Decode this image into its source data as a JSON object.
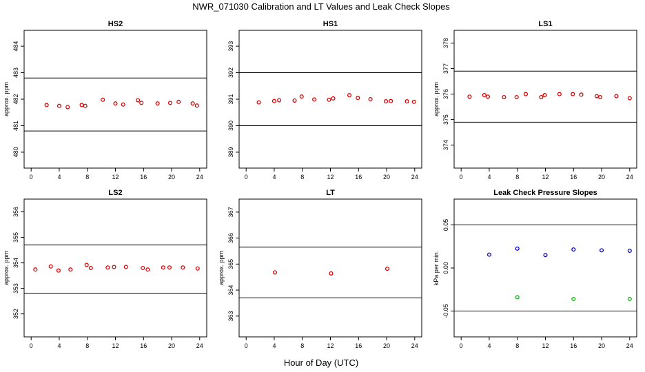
{
  "figure": {
    "title": "NWR_071030  Calibration and LT Values and Leak Check Slopes",
    "xlabel": "Hour of Day (UTC)"
  },
  "chart_data": [
    {
      "type": "scatter",
      "title": "HS2",
      "ylabel": "approx. ppm",
      "xlim": [
        -1,
        25
      ],
      "ylim": [
        479.4,
        484.6
      ],
      "xticks": [
        0,
        4,
        8,
        12,
        16,
        20,
        24
      ],
      "yticks": [
        480,
        481,
        482,
        483,
        484
      ],
      "hlines": [
        482.8,
        480.8
      ],
      "series": [
        {
          "color": "#dd0000",
          "x": [
            2.2,
            4.0,
            5.2,
            7.2,
            7.7,
            10.2,
            12.0,
            13.1,
            15.2,
            15.7,
            18.0,
            19.8,
            21.0,
            23.0,
            23.6
          ],
          "y": [
            481.78,
            481.75,
            481.7,
            481.78,
            481.75,
            481.98,
            481.84,
            481.8,
            481.96,
            481.86,
            481.84,
            481.86,
            481.9,
            481.84,
            481.76
          ]
        }
      ]
    },
    {
      "type": "scatter",
      "title": "HS1",
      "ylabel": "",
      "xlim": [
        -1,
        25
      ],
      "ylim": [
        388.4,
        393.6
      ],
      "xticks": [
        0,
        4,
        8,
        12,
        16,
        20,
        24
      ],
      "yticks": [
        389,
        390,
        391,
        392,
        393
      ],
      "hlines": [
        392.0,
        390.0
      ],
      "series": [
        {
          "color": "#dd0000",
          "x": [
            1.8,
            4.0,
            4.7,
            6.9,
            7.9,
            9.7,
            11.8,
            12.4,
            14.7,
            15.9,
            17.7,
            19.9,
            20.6,
            22.9,
            23.9
          ],
          "y": [
            390.88,
            390.93,
            390.96,
            390.95,
            391.1,
            390.99,
            390.98,
            391.03,
            391.15,
            391.05,
            391.0,
            390.92,
            390.93,
            390.92,
            390.9
          ]
        }
      ]
    },
    {
      "type": "scatter",
      "title": "LS1",
      "ylabel": "approx. ppm",
      "xlim": [
        -1,
        25
      ],
      "ylim": [
        373.1,
        378.5
      ],
      "xticks": [
        0,
        4,
        8,
        12,
        16,
        20,
        24
      ],
      "yticks": [
        374,
        375,
        376,
        377,
        378
      ],
      "hlines": [
        376.9,
        374.9
      ],
      "series": [
        {
          "color": "#dd0000",
          "x": [
            1.2,
            3.3,
            3.8,
            6.1,
            7.9,
            9.2,
            11.4,
            11.9,
            14.0,
            15.9,
            17.1,
            19.3,
            19.8,
            22.1,
            24.0
          ],
          "y": [
            375.9,
            375.96,
            375.9,
            375.88,
            375.88,
            376.0,
            375.88,
            375.96,
            376.0,
            376.0,
            375.98,
            375.92,
            375.88,
            375.92,
            375.84
          ]
        }
      ]
    },
    {
      "type": "scatter",
      "title": "LS2",
      "ylabel": "approx. ppm",
      "xlim": [
        -1,
        25
      ],
      "ylim": [
        351.1,
        356.5
      ],
      "xticks": [
        0,
        4,
        8,
        12,
        16,
        20,
        24
      ],
      "yticks": [
        352,
        353,
        354,
        355,
        356
      ],
      "hlines": [
        354.7,
        352.8
      ],
      "series": [
        {
          "color": "#dd0000",
          "x": [
            0.6,
            2.8,
            3.9,
            5.6,
            7.9,
            8.5,
            10.9,
            11.8,
            13.5,
            15.9,
            16.6,
            18.8,
            19.7,
            21.6,
            23.7
          ],
          "y": [
            353.74,
            353.86,
            353.7,
            353.74,
            353.92,
            353.8,
            353.82,
            353.84,
            353.84,
            353.8,
            353.74,
            353.82,
            353.82,
            353.82,
            353.78
          ]
        }
      ]
    },
    {
      "type": "scatter",
      "title": "LT",
      "ylabel": "approx. ppm",
      "xlim": [
        -1,
        25
      ],
      "ylim": [
        362.2,
        367.5
      ],
      "xticks": [
        0,
        4,
        8,
        12,
        16,
        20,
        24
      ],
      "yticks": [
        363,
        364,
        365,
        366,
        367
      ],
      "hlines": [
        365.65,
        363.7
      ],
      "series": [
        {
          "color": "#dd0000",
          "x": [
            4.1,
            12.1,
            20.1
          ],
          "y": [
            364.68,
            364.64,
            364.82
          ]
        }
      ]
    },
    {
      "type": "scatter",
      "title": "Leak Check Pressure Slopes",
      "ylabel": "kPa per min.",
      "xlim": [
        -1,
        25
      ],
      "ylim": [
        -0.08,
        0.08
      ],
      "xticks": [
        0,
        4,
        8,
        12,
        16,
        20,
        24
      ],
      "yticks": [
        -0.05,
        0.0,
        0.05
      ],
      "ytick_labels": [
        "-0.05",
        "0.00",
        "0.05"
      ],
      "hlines": [
        0.05,
        -0.05
      ],
      "series": [
        {
          "color": "#0000cc",
          "x": [
            4.0,
            8.0,
            12.0,
            16.0,
            20.0,
            24.0
          ],
          "y": [
            0.0155,
            0.0225,
            0.015,
            0.0215,
            0.0205,
            0.02
          ]
        },
        {
          "color": "#00bb00",
          "x": [
            8.0,
            16.0,
            24.0
          ],
          "y": [
            -0.034,
            -0.036,
            -0.036
          ]
        }
      ]
    }
  ]
}
